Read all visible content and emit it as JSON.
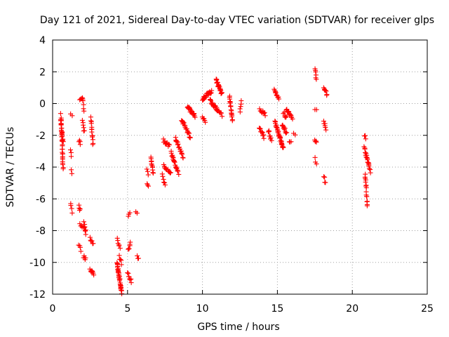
{
  "chart_data": {
    "type": "scatter",
    "title": "Day 121 of 2021, Sidereal Day-to-day VTEC variation (SDTVAR) for receiver glps",
    "xlabel": "GPS time / hours",
    "ylabel": "SDTVAR / TECUs",
    "xlim": [
      0,
      25
    ],
    "ylim": [
      -12,
      4
    ],
    "xticks": [
      0,
      5,
      10,
      15,
      20,
      25
    ],
    "yticks": [
      -12,
      -10,
      -8,
      -6,
      -4,
      -2,
      0,
      2,
      4
    ],
    "xtick_labels": [
      "0",
      "5",
      "10",
      "15",
      "20",
      "25"
    ],
    "ytick_labels": [
      "-12",
      "-10",
      "-8",
      "-6",
      "-4",
      "-2",
      "0",
      "2",
      "4"
    ],
    "grid": true,
    "marker": "+",
    "color": "#ff0000",
    "segments": [
      {
        "x": [
          0.55,
          0.7
        ],
        "y": [
          -0.7,
          -4.1
        ],
        "n": 32
      },
      {
        "x": [
          0.55,
          0.7
        ],
        "y": [
          -1.0,
          -2.5
        ],
        "n": 10
      },
      {
        "x": [
          1.2,
          1.3
        ],
        "y": [
          -0.7,
          -0.7
        ],
        "n": 2
      },
      {
        "x": [
          1.2,
          1.25
        ],
        "y": [
          -2.9,
          -3.3
        ],
        "n": 3
      },
      {
        "x": [
          1.25,
          1.3
        ],
        "y": [
          -4.2,
          -4.4
        ],
        "n": 2
      },
      {
        "x": [
          1.2,
          1.3
        ],
        "y": [
          -6.2,
          -6.8
        ],
        "n": 4
      },
      {
        "x": [
          1.75,
          1.85
        ],
        "y": [
          -2.3,
          -2.5
        ],
        "n": 4
      },
      {
        "x": [
          1.75,
          1.85
        ],
        "y": [
          -6.5,
          -6.7
        ],
        "n": 4
      },
      {
        "x": [
          1.75,
          1.9
        ],
        "y": [
          -8.9,
          -9.2
        ],
        "n": 4
      },
      {
        "x": [
          1.8,
          2.2
        ],
        "y": [
          -7.6,
          -7.9
        ],
        "n": 8
      },
      {
        "x": [
          1.8,
          2.0
        ],
        "y": [
          0.2,
          0.3
        ],
        "n": 4
      },
      {
        "x": [
          2.0,
          2.1
        ],
        "y": [
          0.4,
          -0.4
        ],
        "n": 6
      },
      {
        "x": [
          2.0,
          2.1
        ],
        "y": [
          -1.0,
          -1.8
        ],
        "n": 6
      },
      {
        "x": [
          2.1,
          2.2
        ],
        "y": [
          -7.5,
          -8.2
        ],
        "n": 6
      },
      {
        "x": [
          2.05,
          2.2
        ],
        "y": [
          -9.6,
          -9.8
        ],
        "n": 5
      },
      {
        "x": [
          2.55,
          2.7
        ],
        "y": [
          -0.9,
          -2.6
        ],
        "n": 14
      },
      {
        "x": [
          2.5,
          2.7
        ],
        "y": [
          -8.5,
          -8.8
        ],
        "n": 6
      },
      {
        "x": [
          2.5,
          2.75
        ],
        "y": [
          -10.4,
          -10.8
        ],
        "n": 9
      },
      {
        "x": [
          4.3,
          4.5
        ],
        "y": [
          -8.5,
          -9.0
        ],
        "n": 6
      },
      {
        "x": [
          4.3,
          4.6
        ],
        "y": [
          -10.0,
          -11.9
        ],
        "n": 34
      },
      {
        "x": [
          4.45,
          4.6
        ],
        "y": [
          -9.6,
          -10.1
        ],
        "n": 5
      },
      {
        "x": [
          5.05,
          5.15
        ],
        "y": [
          -7.0,
          -6.9
        ],
        "n": 3
      },
      {
        "x": [
          5.05,
          5.2
        ],
        "y": [
          -9.2,
          -8.8
        ],
        "n": 6
      },
      {
        "x": [
          5.0,
          5.25
        ],
        "y": [
          -10.7,
          -11.2
        ],
        "n": 8
      },
      {
        "x": [
          5.55,
          5.65
        ],
        "y": [
          -6.8,
          -6.9
        ],
        "n": 2
      },
      {
        "x": [
          5.65,
          5.75
        ],
        "y": [
          -9.6,
          -9.8
        ],
        "n": 3
      },
      {
        "x": [
          6.3,
          6.4
        ],
        "y": [
          -5.0,
          -5.3
        ],
        "n": 3
      },
      {
        "x": [
          6.3,
          6.4
        ],
        "y": [
          -4.1,
          -4.5
        ],
        "n": 3
      },
      {
        "x": [
          6.55,
          6.7
        ],
        "y": [
          -3.3,
          -4.4
        ],
        "n": 11
      },
      {
        "x": [
          7.3,
          7.5
        ],
        "y": [
          -4.5,
          -5.1
        ],
        "n": 6
      },
      {
        "x": [
          7.4,
          7.9
        ],
        "y": [
          -3.9,
          -4.4
        ],
        "n": 12
      },
      {
        "x": [
          7.4,
          7.8
        ],
        "y": [
          -2.3,
          -2.7
        ],
        "n": 10
      },
      {
        "x": [
          7.9,
          8.4
        ],
        "y": [
          -3.1,
          -4.4
        ],
        "n": 20
      },
      {
        "x": [
          8.2,
          8.7
        ],
        "y": [
          -2.2,
          -3.4
        ],
        "n": 20
      },
      {
        "x": [
          8.6,
          9.2
        ],
        "y": [
          -1.0,
          -2.2
        ],
        "n": 22
      },
      {
        "x": [
          9.0,
          9.5
        ],
        "y": [
          -0.2,
          -0.8
        ],
        "n": 20
      },
      {
        "x": [
          10.0,
          10.2
        ],
        "y": [
          -0.8,
          -1.2
        ],
        "n": 6
      },
      {
        "x": [
          10.0,
          10.6
        ],
        "y": [
          0.3,
          0.8
        ],
        "n": 25
      },
      {
        "x": [
          10.5,
          11.0
        ],
        "y": [
          0.2,
          -0.4
        ],
        "n": 18
      },
      {
        "x": [
          10.9,
          11.3
        ],
        "y": [
          1.5,
          0.6
        ],
        "n": 22
      },
      {
        "x": [
          11.0,
          11.3
        ],
        "y": [
          -0.4,
          -0.7
        ],
        "n": 8
      },
      {
        "x": [
          11.8,
          12.0
        ],
        "y": [
          0.4,
          -1.0
        ],
        "n": 18
      },
      {
        "x": [
          12.5,
          12.6
        ],
        "y": [
          -0.5,
          0.2
        ],
        "n": 5
      },
      {
        "x": [
          13.8,
          14.2
        ],
        "y": [
          -0.4,
          -0.7
        ],
        "n": 10
      },
      {
        "x": [
          13.8,
          14.1
        ],
        "y": [
          -1.5,
          -2.1
        ],
        "n": 10
      },
      {
        "x": [
          14.4,
          14.6
        ],
        "y": [
          -1.7,
          -2.3
        ],
        "n": 8
      },
      {
        "x": [
          14.8,
          15.1
        ],
        "y": [
          0.8,
          0.3
        ],
        "n": 12
      },
      {
        "x": [
          14.85,
          15.4
        ],
        "y": [
          -1.2,
          -2.8
        ],
        "n": 35
      },
      {
        "x": [
          15.3,
          15.6
        ],
        "y": [
          -1.4,
          -1.8
        ],
        "n": 10
      },
      {
        "x": [
          15.4,
          15.6
        ],
        "y": [
          -0.6,
          -0.9
        ],
        "n": 6
      },
      {
        "x": [
          15.6,
          16.0
        ],
        "y": [
          -0.4,
          -1.0
        ],
        "n": 14
      },
      {
        "x": [
          15.8,
          15.9
        ],
        "y": [
          -2.3,
          -2.5
        ],
        "n": 3
      },
      {
        "x": [
          16.1,
          16.2
        ],
        "y": [
          -1.9,
          -2.0
        ],
        "n": 2
      },
      {
        "x": [
          17.5,
          17.6
        ],
        "y": [
          2.1,
          1.6
        ],
        "n": 6
      },
      {
        "x": [
          17.5,
          17.6
        ],
        "y": [
          -0.3,
          -0.4
        ],
        "n": 2
      },
      {
        "x": [
          17.5,
          17.6
        ],
        "y": [
          -2.2,
          -2.5
        ],
        "n": 4
      },
      {
        "x": [
          17.5,
          17.6
        ],
        "y": [
          -3.5,
          -3.7
        ],
        "n": 3
      },
      {
        "x": [
          18.1,
          18.3
        ],
        "y": [
          1.1,
          0.5
        ],
        "n": 8
      },
      {
        "x": [
          18.1,
          18.25
        ],
        "y": [
          -1.1,
          -1.7
        ],
        "n": 6
      },
      {
        "x": [
          18.1,
          18.2
        ],
        "y": [
          -4.6,
          -5.0
        ],
        "n": 4
      },
      {
        "x": [
          20.8,
          20.9
        ],
        "y": [
          -2.0,
          -2.2
        ],
        "n": 3
      },
      {
        "x": [
          20.8,
          21.2
        ],
        "y": [
          -2.8,
          -4.3
        ],
        "n": 22
      },
      {
        "x": [
          20.85,
          21.0
        ],
        "y": [
          -4.4,
          -6.5
        ],
        "n": 16
      }
    ]
  }
}
